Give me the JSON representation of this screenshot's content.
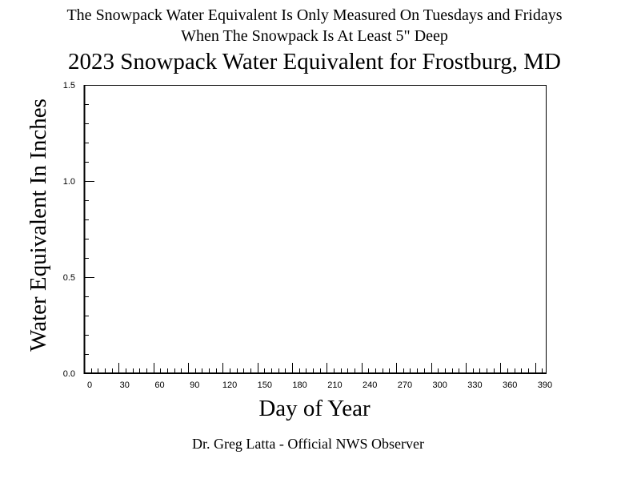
{
  "header": {
    "note_line1": "The Snowpack Water Equivalent Is Only Measured On Tuesdays and Fridays",
    "note_line2": "When The Snowpack Is At Least 5\" Deep"
  },
  "footer": "Dr. Greg Latta - Official NWS Observer",
  "chart_data": {
    "type": "line",
    "title": "2023 Snowpack Water Equivalent for Frostburg, MD",
    "xlabel": "Day of Year",
    "ylabel": "Water Equivalent In Inches",
    "xlim": [
      0,
      390
    ],
    "ylim": [
      0,
      1.5
    ],
    "x_ticks": [
      "0",
      "30",
      "60",
      "90",
      "120",
      "150",
      "180",
      "210",
      "240",
      "270",
      "300",
      "330",
      "360",
      "390"
    ],
    "y_ticks": [
      "0.0",
      "0.5",
      "1.0",
      "1.5"
    ],
    "grid": false,
    "series": [],
    "colors": {
      "axis": "#000000",
      "background": "#ffffff"
    }
  }
}
